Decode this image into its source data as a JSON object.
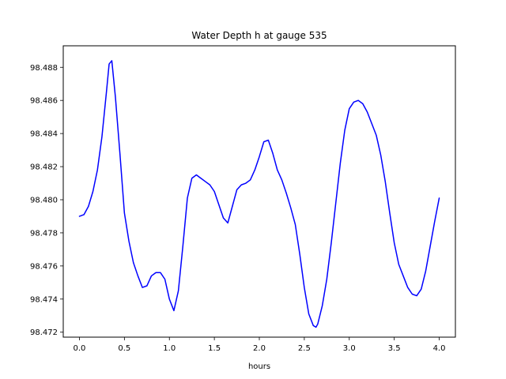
{
  "chart_data": {
    "type": "line",
    "title": "Water Depth h at gauge 535",
    "xlabel": "hours",
    "ylabel": "",
    "xlim": [
      -0.18,
      4.18
    ],
    "ylim": [
      98.4717,
      98.4893
    ],
    "xticks": [
      0.0,
      0.5,
      1.0,
      1.5,
      2.0,
      2.5,
      3.0,
      3.5,
      4.0
    ],
    "xtick_labels": [
      "0.0",
      "0.5",
      "1.0",
      "1.5",
      "2.0",
      "2.5",
      "3.0",
      "3.5",
      "4.0"
    ],
    "yticks": [
      98.472,
      98.474,
      98.476,
      98.478,
      98.48,
      98.482,
      98.484,
      98.486,
      98.488
    ],
    "ytick_labels": [
      "98.472",
      "98.474",
      "98.476",
      "98.478",
      "98.480",
      "98.482",
      "98.484",
      "98.486",
      "98.488"
    ],
    "grid": false,
    "legend": "none",
    "series": [
      {
        "color": "#0000ff",
        "x": [
          0.0,
          0.05,
          0.1,
          0.15,
          0.2,
          0.25,
          0.3,
          0.33,
          0.36,
          0.4,
          0.45,
          0.5,
          0.55,
          0.6,
          0.65,
          0.7,
          0.75,
          0.8,
          0.85,
          0.9,
          0.95,
          1.0,
          1.05,
          1.1,
          1.15,
          1.2,
          1.25,
          1.3,
          1.35,
          1.4,
          1.45,
          1.5,
          1.55,
          1.6,
          1.65,
          1.7,
          1.75,
          1.8,
          1.85,
          1.9,
          1.95,
          2.0,
          2.05,
          2.1,
          2.15,
          2.2,
          2.25,
          2.3,
          2.35,
          2.4,
          2.45,
          2.5,
          2.55,
          2.6,
          2.63,
          2.65,
          2.7,
          2.75,
          2.8,
          2.85,
          2.9,
          2.95,
          3.0,
          3.05,
          3.1,
          3.15,
          3.2,
          3.25,
          3.3,
          3.35,
          3.4,
          3.45,
          3.5,
          3.55,
          3.6,
          3.65,
          3.7,
          3.75,
          3.8,
          3.85,
          3.9,
          3.95,
          4.0
        ],
        "y": [
          98.479,
          98.4791,
          98.4796,
          98.4805,
          98.4818,
          98.4838,
          98.4865,
          98.4882,
          98.4884,
          98.4862,
          98.4828,
          98.4792,
          98.4775,
          98.4762,
          98.4754,
          98.4747,
          98.4748,
          98.4754,
          98.4756,
          98.4756,
          98.4752,
          98.474,
          98.4733,
          98.4745,
          98.4772,
          98.4801,
          98.4813,
          98.4815,
          98.4813,
          98.4811,
          98.4809,
          98.4805,
          98.4797,
          98.4789,
          98.4786,
          98.4796,
          98.4806,
          98.4809,
          98.481,
          98.4812,
          98.4818,
          98.4826,
          98.4835,
          98.4836,
          98.4828,
          98.4818,
          98.4812,
          98.4804,
          98.4795,
          98.4785,
          98.4767,
          98.4747,
          98.4731,
          98.4724,
          98.4723,
          98.4725,
          98.4736,
          98.4752,
          98.4774,
          98.4798,
          98.4822,
          98.4842,
          98.4855,
          98.4859,
          98.486,
          98.4858,
          98.4853,
          98.4846,
          98.4839,
          98.4827,
          98.4811,
          98.4792,
          98.4774,
          98.4761,
          98.4754,
          98.4747,
          98.4743,
          98.4742,
          98.4746,
          98.4757,
          98.4772,
          98.4787,
          98.4801
        ]
      }
    ]
  }
}
